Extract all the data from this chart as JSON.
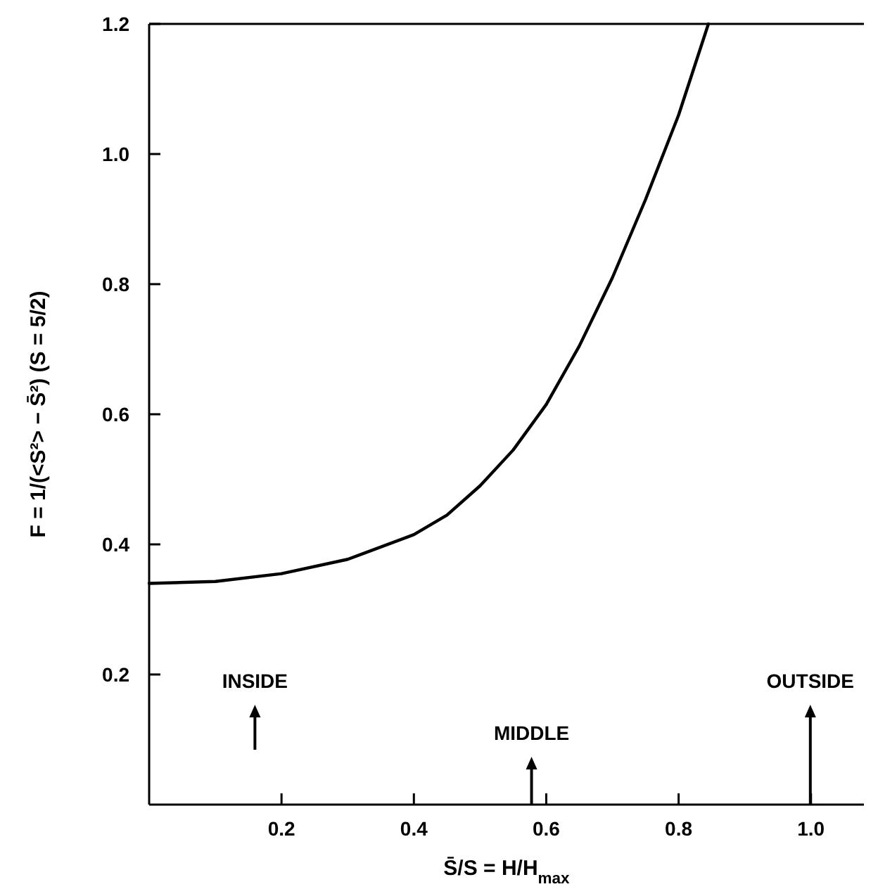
{
  "chart_data": {
    "type": "line",
    "xlabel": "S̄/S = H/H$_{max}$",
    "ylabel": "F = 1/(<S²> − S̄²)  (S = 5/2)",
    "x": [
      0,
      0.1,
      0.2,
      0.3,
      0.4,
      0.45,
      0.5,
      0.55,
      0.6,
      0.65,
      0.7,
      0.75,
      0.8,
      0.845
    ],
    "series": [
      {
        "color": "#000000",
        "values": [
          0.34,
          0.343,
          0.355,
          0.377,
          0.415,
          0.445,
          0.49,
          0.545,
          0.615,
          0.705,
          0.81,
          0.93,
          1.06,
          1.2
        ]
      }
    ],
    "xlim": [
      0,
      1.08
    ],
    "ylim": [
      0,
      1.2
    ],
    "xticks": [
      0.2,
      0.4,
      0.6,
      0.8,
      {
        "value": 1,
        "label": "1.0"
      }
    ],
    "yticks": [
      0.2,
      0.4,
      0.6,
      0.8,
      {
        "value": 1,
        "label": "1.0"
      },
      {
        "value": 1.2,
        "label": "1.2"
      }
    ],
    "annotations": [
      "INSIDE",
      "MIDDLE",
      "OUTSIDE"
    ],
    "grid": false,
    "marker": "none",
    "line_style": "solid"
  }
}
